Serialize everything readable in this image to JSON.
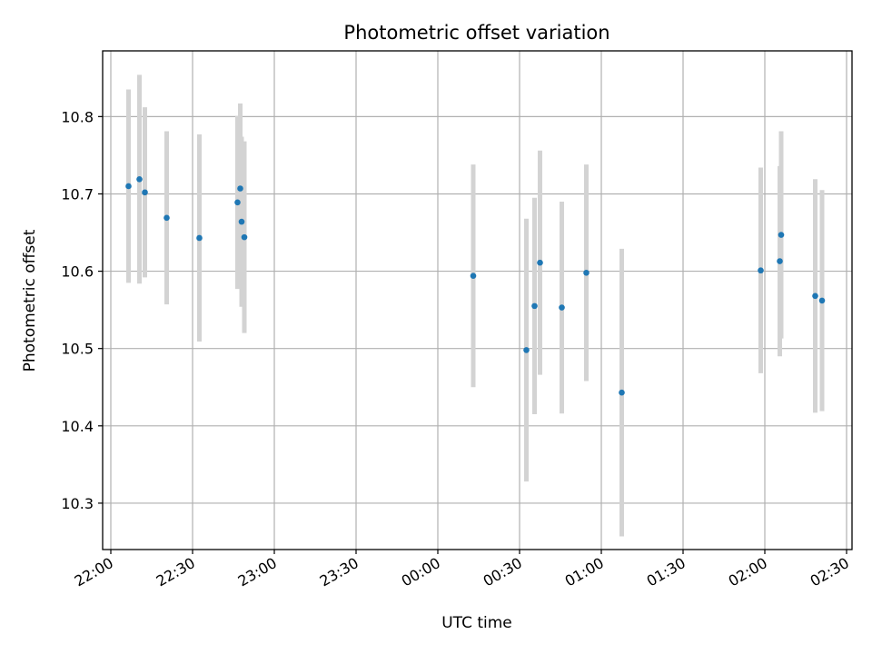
{
  "chart_data": {
    "type": "scatter",
    "title": "Photometric offset variation",
    "xlabel": "UTC time",
    "ylabel": "Photometric offset",
    "x_ticks": [
      "22:00",
      "22:30",
      "23:00",
      "23:30",
      "00:00",
      "00:30",
      "01:00",
      "01:30",
      "02:00",
      "02:30"
    ],
    "y_ticks": [
      10.3,
      10.4,
      10.5,
      10.6,
      10.7,
      10.8
    ],
    "xlim": [
      "21:57",
      "02:32"
    ],
    "ylim": [
      10.24,
      10.885
    ],
    "grid": true,
    "point_color": "#1f77b4",
    "errorbar_color": "#d3d3d3",
    "points": [
      {
        "t": "22:06.5",
        "y": 10.71,
        "err": 0.125
      },
      {
        "t": "22:10.5",
        "y": 10.719,
        "err": 0.135
      },
      {
        "t": "22:12.5",
        "y": 10.702,
        "err": 0.11
      },
      {
        "t": "22:20.5",
        "y": 10.669,
        "err": 0.112
      },
      {
        "t": "22:32.5",
        "y": 10.643,
        "err": 0.134
      },
      {
        "t": "22:46.5",
        "y": 10.689,
        "err": 0.112
      },
      {
        "t": "22:47.5",
        "y": 10.707,
        "err": 0.11
      },
      {
        "t": "22:48.0",
        "y": 10.664,
        "err": 0.11
      },
      {
        "t": "22:49.0",
        "y": 10.644,
        "err": 0.124
      },
      {
        "t": "00:13.0",
        "y": 10.594,
        "err": 0.144
      },
      {
        "t": "00:32.5",
        "y": 10.498,
        "err": 0.17
      },
      {
        "t": "00:35.5",
        "y": 10.555,
        "err": 0.14
      },
      {
        "t": "00:37.5",
        "y": 10.611,
        "err": 0.145
      },
      {
        "t": "00:45.5",
        "y": 10.553,
        "err": 0.137
      },
      {
        "t": "00:54.5",
        "y": 10.598,
        "err": 0.14
      },
      {
        "t": "01:07.5",
        "y": 10.443,
        "err": 0.186
      },
      {
        "t": "01:58.5",
        "y": 10.601,
        "err": 0.133
      },
      {
        "t": "02:05.5",
        "y": 10.613,
        "err": 0.123
      },
      {
        "t": "02:06.0",
        "y": 10.647,
        "err": 0.134
      },
      {
        "t": "02:18.5",
        "y": 10.568,
        "err": 0.151
      },
      {
        "t": "02:21.0",
        "y": 10.562,
        "err": 0.143
      }
    ]
  }
}
